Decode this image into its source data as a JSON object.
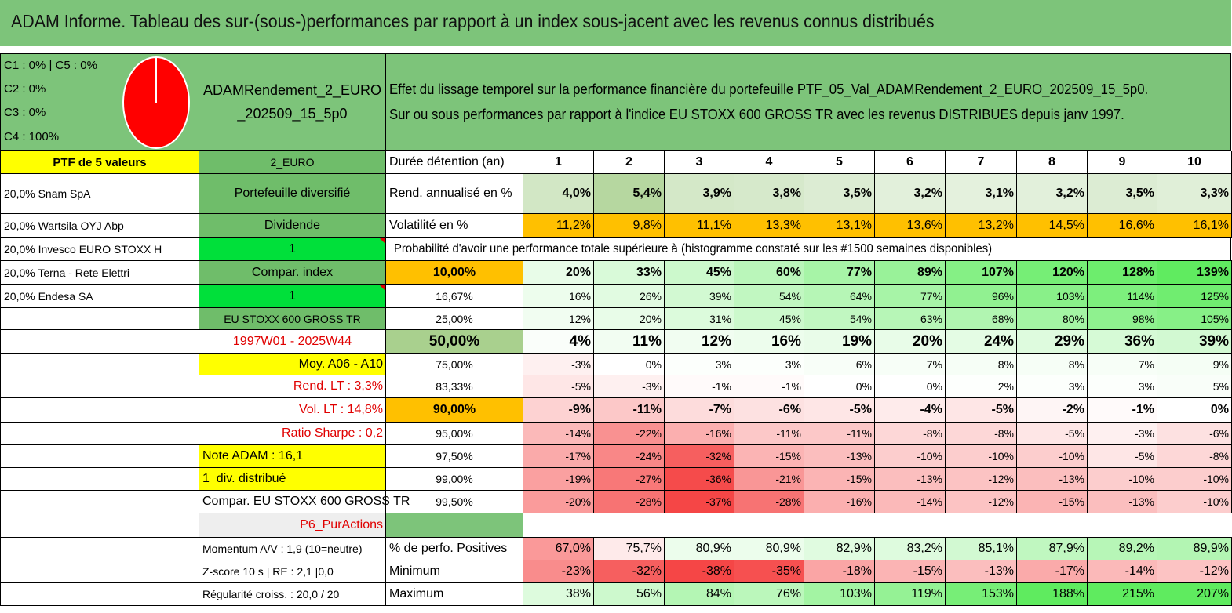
{
  "title": "ADAM Informe. Tableau des sur-(sous-)performances par rapport à un index sous-jacent avec les revenus connus distribués",
  "legend": [
    "C1 : 0% | C5 : 0%",
    "C2 : 0%",
    "C3 : 0%",
    "C4 : 100%"
  ],
  "pie": {
    "color": "#ff0000",
    "slices": [
      {
        "label": "C4",
        "value": 100
      }
    ]
  },
  "portfolio_name": [
    "ADAMRendement_2_EURO",
    "_202509_15_5p0"
  ],
  "description": [
    "Effet du lissage temporel sur la performance financière du portefeuille PTF_05_Val_ADAMRendement_2_EURO_202509_15_5p0.",
    "Sur ou sous performances par rapport à l'indice EU STOXX 600 GROSS TR avec les revenus DISTRIBUES depuis janv 1997."
  ],
  "left_col": {
    "header": "PTF de 5 valeurs",
    "rows": [
      "20,0% Snam SpA",
      "20,0% Wartsila OYJ Abp",
      "20,0% Invesco EURO STOXX H",
      "20,0% Terna - Rete Elettri",
      "20,0% Endesa SA"
    ]
  },
  "mid_col": {
    "currency": "2_EURO",
    "type": "Portefeuille diversifié",
    "dividende": "Dividende",
    "one_a": "1",
    "compar": "Compar. index",
    "one_b": "1",
    "index_name": "EU STOXX 600 GROSS TR",
    "period": "1997W01 - 2025W44",
    "moy": "Moy. A06 - A10",
    "rend_lt": "Rend. LT : 3,3%",
    "vol_lt": "Vol. LT : 14,8%",
    "sharpe": "Ratio Sharpe : 0,2",
    "note": "Note ADAM : 16,1",
    "div": "1_div. distribué",
    "compar_index": "Compar. EU STOXX 600 GROSS TR",
    "p6": "P6_PurActions",
    "momentum": "Momentum A/V : 1,9 (10=neutre)",
    "zscore": "Z-score 10 s | RE : 2,1 |0,0",
    "regularite": "Régularité croiss. : 20,0 / 20"
  },
  "table": {
    "duree_label": "Durée détention (an)",
    "years": [
      "1",
      "2",
      "3",
      "4",
      "5",
      "6",
      "7",
      "8",
      "9",
      "10"
    ],
    "rend_label": "Rend. annualisé en %",
    "rend": [
      "4,0%",
      "5,4%",
      "3,9%",
      "3,8%",
      "3,5%",
      "3,2%",
      "3,1%",
      "3,2%",
      "3,5%",
      "3,3%"
    ],
    "vol_label": "Volatilité en %",
    "vol": [
      "11,2%",
      "9,8%",
      "11,1%",
      "13,3%",
      "13,1%",
      "13,6%",
      "13,2%",
      "14,5%",
      "16,6%",
      "16,1%"
    ],
    "proba_label": "Probabilité d'avoir une performance totale supérieure à (histogramme constaté sur les #1500 semaines disponibles)",
    "prob_rows": [
      {
        "p": "10,00%",
        "v": [
          "20%",
          "33%",
          "45%",
          "60%",
          "77%",
          "89%",
          "107%",
          "120%",
          "128%",
          "139%"
        ]
      },
      {
        "p": "16,67%",
        "v": [
          "16%",
          "26%",
          "39%",
          "54%",
          "64%",
          "77%",
          "96%",
          "103%",
          "114%",
          "125%"
        ]
      },
      {
        "p": "25,00%",
        "v": [
          "12%",
          "20%",
          "31%",
          "45%",
          "54%",
          "63%",
          "68%",
          "80%",
          "98%",
          "105%"
        ]
      },
      {
        "p": "50,00%",
        "v": [
          "4%",
          "11%",
          "12%",
          "16%",
          "19%",
          "20%",
          "24%",
          "29%",
          "36%",
          "39%"
        ]
      },
      {
        "p": "75,00%",
        "v": [
          "-3%",
          "0%",
          "3%",
          "3%",
          "6%",
          "7%",
          "8%",
          "8%",
          "7%",
          "9%"
        ]
      },
      {
        "p": "83,33%",
        "v": [
          "-5%",
          "-3%",
          "-1%",
          "-1%",
          "0%",
          "0%",
          "2%",
          "3%",
          "3%",
          "5%"
        ]
      },
      {
        "p": "90,00%",
        "v": [
          "-9%",
          "-11%",
          "-7%",
          "-6%",
          "-5%",
          "-4%",
          "-5%",
          "-2%",
          "-1%",
          "0%"
        ]
      },
      {
        "p": "95,00%",
        "v": [
          "-14%",
          "-22%",
          "-16%",
          "-11%",
          "-11%",
          "-8%",
          "-8%",
          "-5%",
          "-3%",
          "-6%"
        ]
      },
      {
        "p": "97,50%",
        "v": [
          "-17%",
          "-24%",
          "-32%",
          "-15%",
          "-13%",
          "-10%",
          "-10%",
          "-10%",
          "-5%",
          "-8%"
        ]
      },
      {
        "p": "99,00%",
        "v": [
          "-19%",
          "-27%",
          "-36%",
          "-21%",
          "-15%",
          "-13%",
          "-12%",
          "-13%",
          "-10%",
          "-10%"
        ]
      },
      {
        "p": "99,50%",
        "v": [
          "-20%",
          "-28%",
          "-37%",
          "-28%",
          "-16%",
          "-14%",
          "-12%",
          "-15%",
          "-13%",
          "-10%"
        ]
      }
    ],
    "pos_label": "% de perfo. Positives",
    "pos": [
      "67,0%",
      "75,7%",
      "80,9%",
      "80,9%",
      "82,9%",
      "83,2%",
      "85,1%",
      "87,9%",
      "89,2%",
      "89,9%"
    ],
    "min_label": "Minimum",
    "min": [
      "-23%",
      "-32%",
      "-38%",
      "-35%",
      "-18%",
      "-15%",
      "-13%",
      "-17%",
      "-14%",
      "-12%"
    ],
    "max_label": "Maximum",
    "max": [
      "38%",
      "56%",
      "84%",
      "76%",
      "103%",
      "119%",
      "153%",
      "188%",
      "215%",
      "207%"
    ]
  }
}
